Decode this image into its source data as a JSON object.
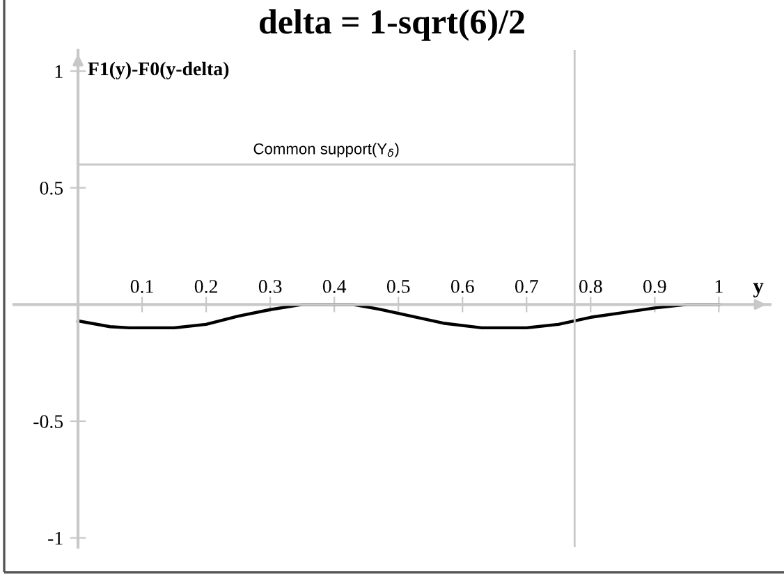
{
  "chart_data": {
    "type": "line",
    "title": "delta = 1-sqrt(6)/2",
    "xlabel": "y",
    "ylabel": "F1(y)-F0(y-delta)",
    "x": [
      0,
      0.05,
      0.08,
      0.15,
      0.2,
      0.25,
      0.3,
      0.35,
      0.43,
      0.47,
      0.52,
      0.57,
      0.63,
      0.7,
      0.75,
      0.8,
      0.85,
      0.9,
      0.95,
      1
    ],
    "series": [
      {
        "color": "#000000",
        "values": [
          -0.07,
          -0.095,
          -0.1,
          -0.1,
          -0.085,
          -0.05,
          -0.022,
          0,
          0,
          -0.02,
          -0.05,
          -0.08,
          -0.1,
          -0.1,
          -0.085,
          -0.055,
          -0.035,
          -0.015,
          0,
          0
        ]
      }
    ],
    "xlim": [
      -0.1,
      1.08
    ],
    "ylim": [
      -1.04,
      1.09
    ],
    "xticks": [
      0.1,
      0.2,
      0.3,
      0.4,
      0.5,
      0.6,
      0.7,
      0.8,
      0.9,
      1
    ],
    "yticks": [
      -1,
      -0.5,
      0.5,
      1
    ],
    "ref_lines": [
      {
        "axis": "x",
        "value": 0.775,
        "color": "#c8c8c8"
      },
      {
        "axis": "y",
        "value": 0.6,
        "label": "Common support(Y$_{δ}$)",
        "color": "#c8c8c8"
      }
    ],
    "grid": false,
    "legend": false,
    "marker": "none",
    "line_style": "solid"
  }
}
